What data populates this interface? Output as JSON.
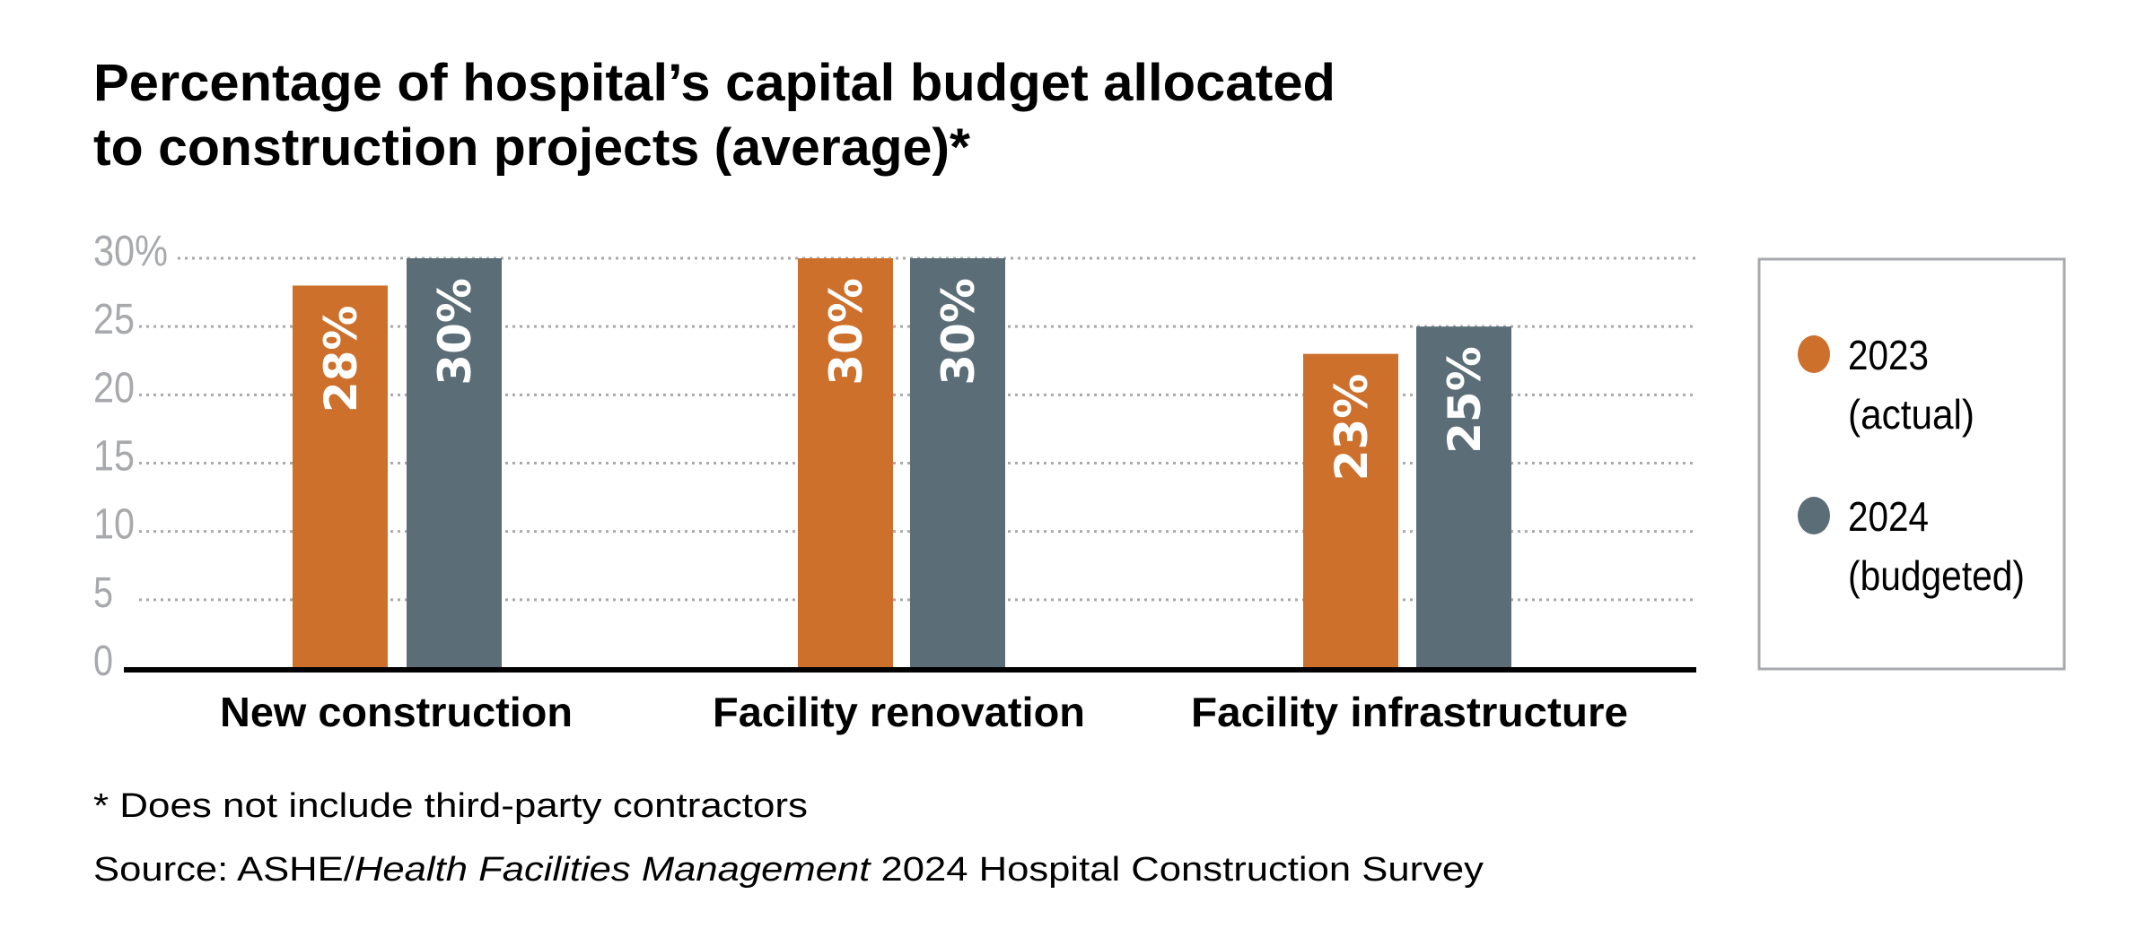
{
  "chart_data": {
    "type": "bar",
    "title_lines": [
      "Percentage of hospital’s capital budget allocated",
      "to construction projects (average)*"
    ],
    "categories": [
      "New construction",
      "Facility renovation",
      "Facility infrastructure"
    ],
    "series": [
      {
        "name": "2023",
        "name_sub": "(actual)",
        "values": [
          28,
          30,
          23
        ],
        "labels": [
          "28%",
          "30%",
          "23%"
        ],
        "color": "#cc702c"
      },
      {
        "name": "2024",
        "name_sub": "(budgeted)",
        "values": [
          30,
          30,
          25
        ],
        "labels": [
          "30%",
          "30%",
          "25%"
        ],
        "color": "#5b6d76"
      }
    ],
    "yticks": [
      0,
      5,
      10,
      15,
      20,
      25,
      30
    ],
    "ytick_labels": [
      "0",
      "5",
      "10",
      "15",
      "20",
      "25",
      "30%"
    ],
    "ylim": [
      0,
      30
    ],
    "grid": "horizontal dotted",
    "legend_position": "right",
    "xlabel": "",
    "ylabel": "",
    "footnote": "* Does not include third-party contractors",
    "source_prefix": "Source: ASHE/",
    "source_italic": "Health Facilities Management",
    "source_suffix": " 2024 Hospital Construction Survey"
  }
}
